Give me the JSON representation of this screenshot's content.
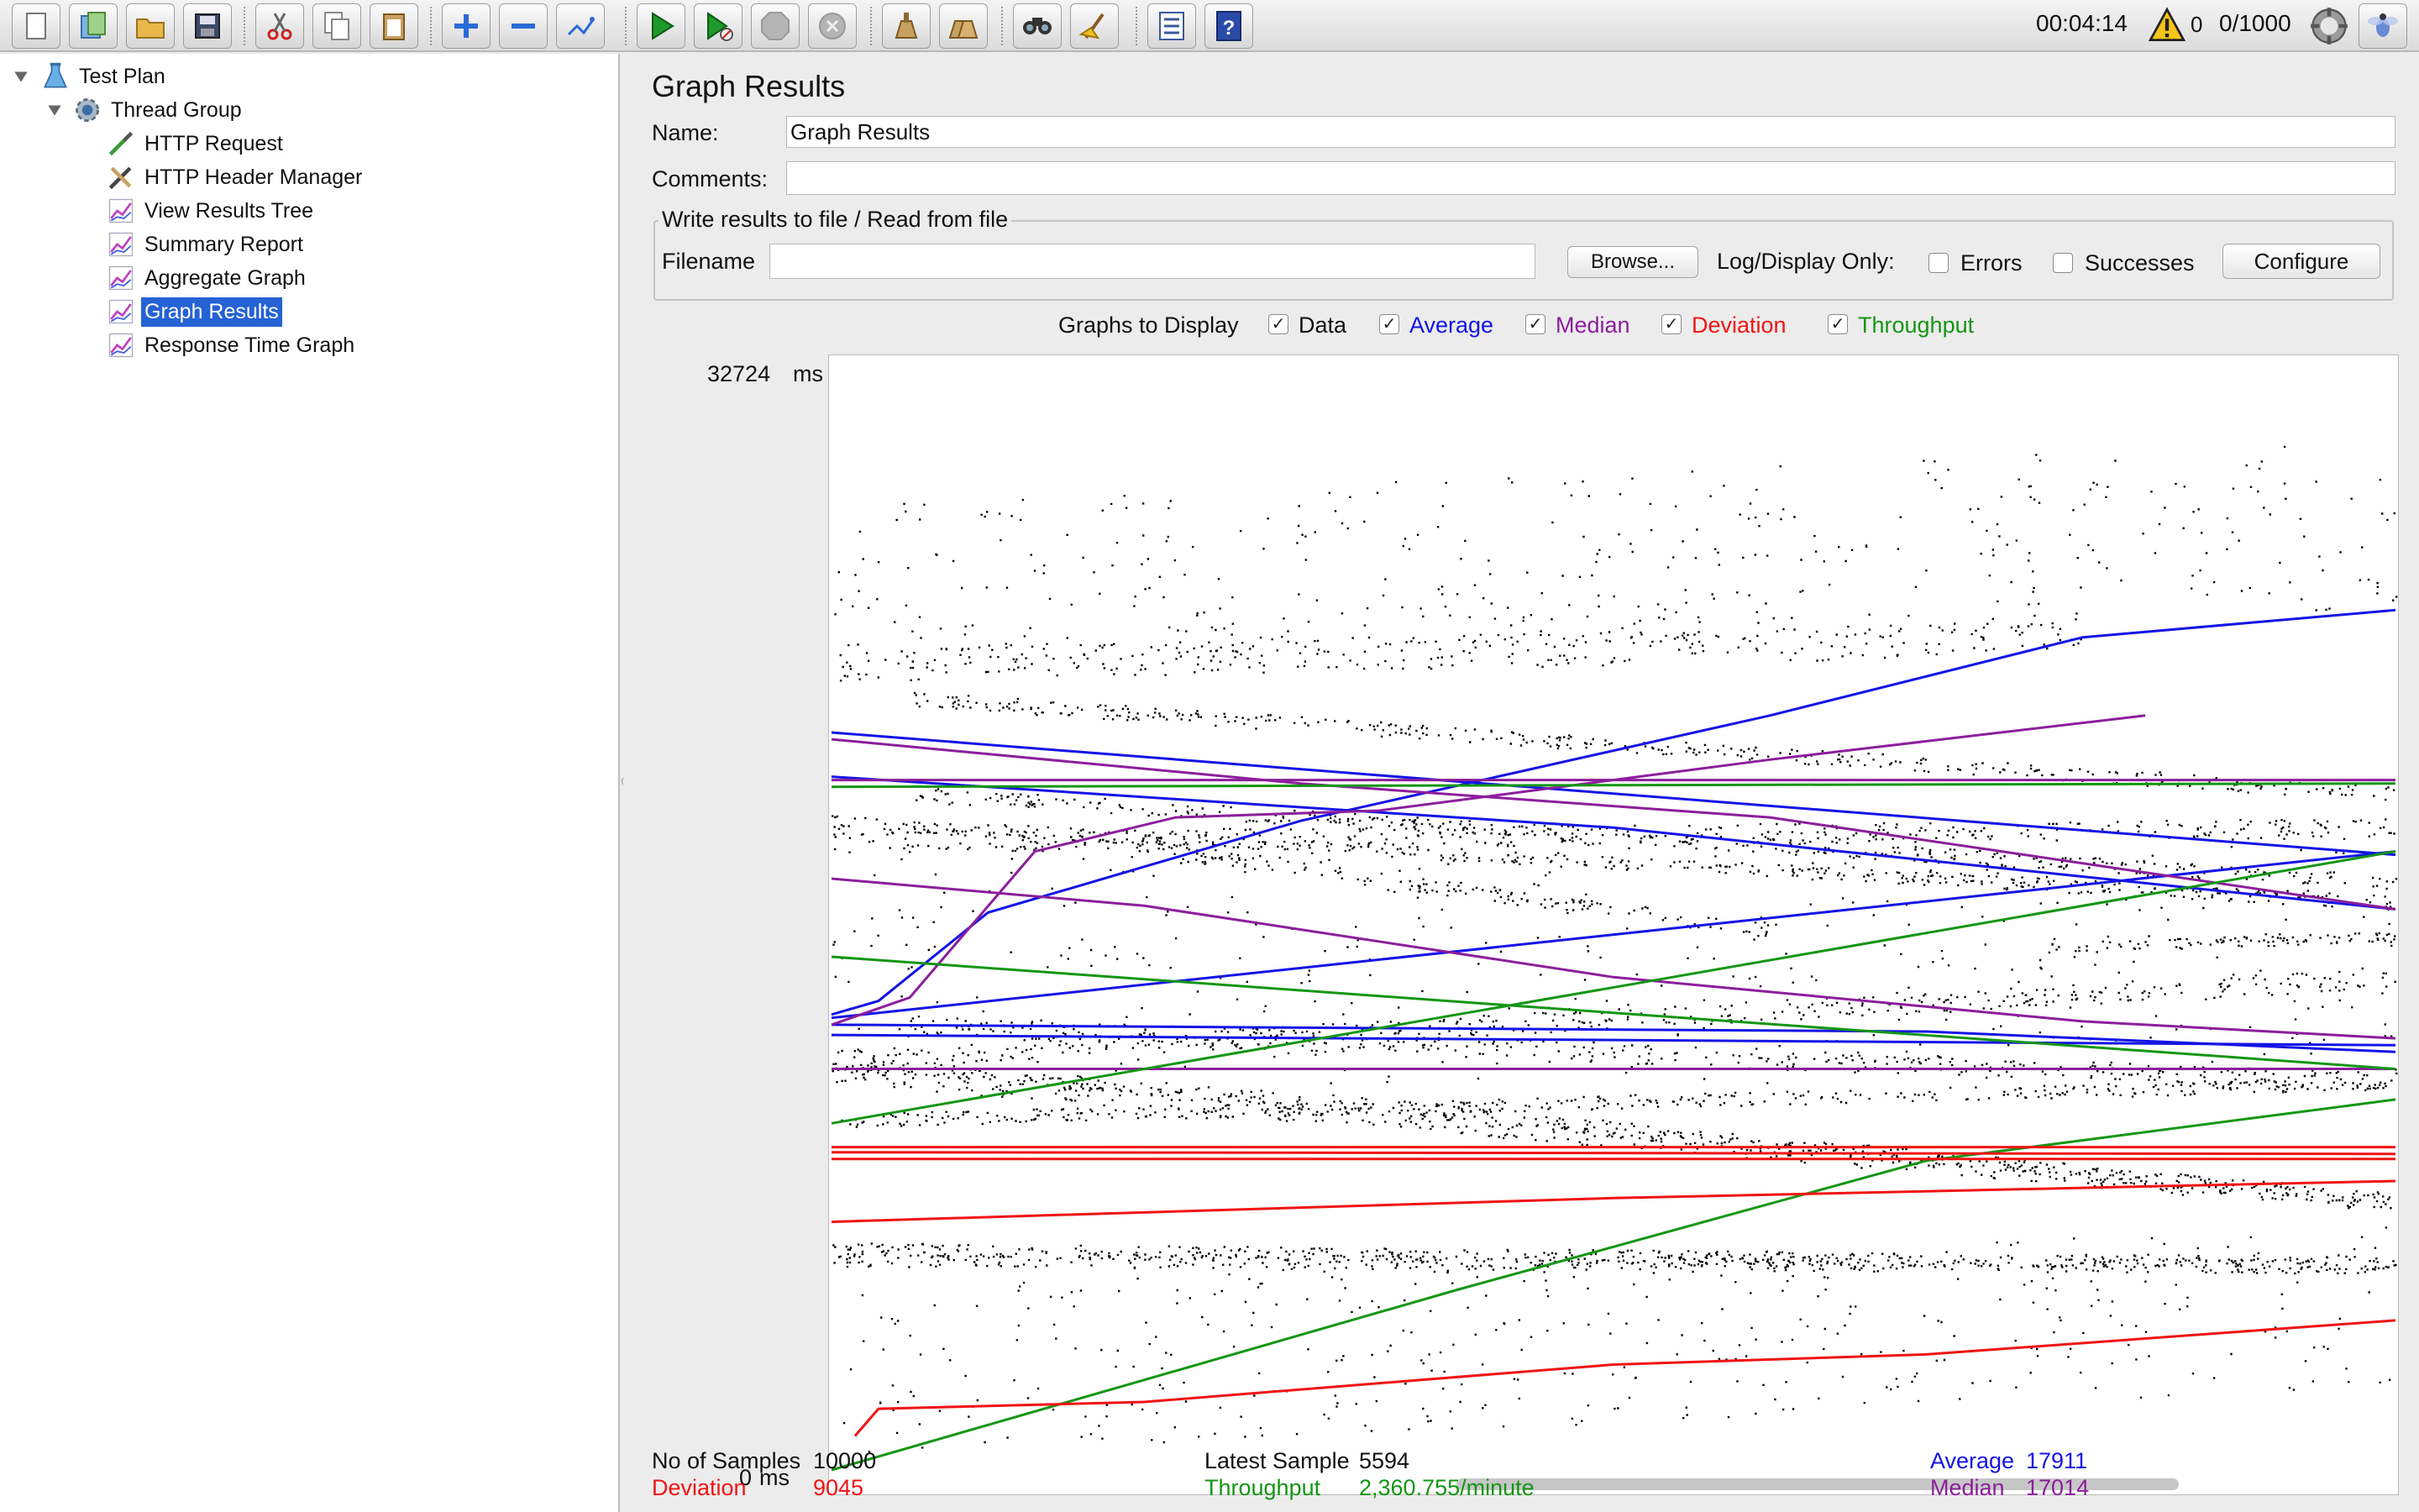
{
  "colors": {
    "data": "#000000",
    "average": "#1414e6",
    "median": "#8c1e9c",
    "deviation": "#f01414",
    "throughput": "#149614",
    "selection": "#2562d4"
  },
  "toolbar": {
    "buttons": [
      {
        "name": "new-icon"
      },
      {
        "name": "templates-icon"
      },
      {
        "name": "open-icon"
      },
      {
        "name": "save-icon"
      },
      {
        "name": "cut-icon"
      },
      {
        "name": "copy-icon"
      },
      {
        "name": "paste-icon"
      },
      {
        "name": "expand-icon"
      },
      {
        "name": "collapse-icon"
      },
      {
        "name": "toggle-icon"
      },
      {
        "name": "start-icon"
      },
      {
        "name": "start-no-pauses-icon"
      },
      {
        "name": "stop-icon"
      },
      {
        "name": "shutdown-icon"
      },
      {
        "name": "clear-icon"
      },
      {
        "name": "clear-all-icon"
      },
      {
        "name": "search-icon"
      },
      {
        "name": "reset-search-icon"
      },
      {
        "name": "function-helper-icon"
      },
      {
        "name": "help-icon"
      }
    ],
    "elapsed_time": "00:04:14",
    "warning_count": "0",
    "active_threads": "0/1000"
  },
  "tree": {
    "items": [
      {
        "label": "Test Plan",
        "icon": "flask-icon",
        "level": 0,
        "expander": "expanded"
      },
      {
        "label": "Thread Group",
        "icon": "gear-icon",
        "level": 1,
        "expander": "expanded"
      },
      {
        "label": "HTTP Request",
        "icon": "pipette-icon",
        "level": 2
      },
      {
        "label": "HTTP Header Manager",
        "icon": "tools-icon",
        "level": 2
      },
      {
        "label": "View Results Tree",
        "icon": "graph-listener-icon",
        "level": 2
      },
      {
        "label": "Summary Report",
        "icon": "graph-listener-icon",
        "level": 2
      },
      {
        "label": "Aggregate Graph",
        "icon": "graph-listener-icon",
        "level": 2
      },
      {
        "label": "Graph Results",
        "icon": "graph-listener-icon",
        "level": 2,
        "selected": true
      },
      {
        "label": "Response Time Graph",
        "icon": "graph-listener-icon",
        "level": 2
      }
    ]
  },
  "panel": {
    "title": "Graph Results",
    "name_label": "Name:",
    "name_value": "Graph Results",
    "comments_label": "Comments:",
    "comments_value": "",
    "file_group_label": "Write results to file / Read from file",
    "filename_label": "Filename",
    "filename_value": "",
    "browse_label": "Browse...",
    "log_display_label": "Log/Display Only:",
    "errors_label": "Errors",
    "successes_label": "Successes",
    "configure_label": "Configure"
  },
  "graphs_to_display": {
    "label": "Graphs to Display",
    "options": [
      {
        "label": "Data",
        "checked": true,
        "color": "#111111"
      },
      {
        "label": "Average",
        "checked": true,
        "color": "#1414e6"
      },
      {
        "label": "Median",
        "checked": true,
        "color": "#8c1e9c"
      },
      {
        "label": "Deviation",
        "checked": true,
        "color": "#f01414"
      },
      {
        "label": "Throughput",
        "checked": true,
        "color": "#149614"
      }
    ]
  },
  "chart_data": {
    "type": "scatter",
    "y_max_label": "32724",
    "y_min_label": "0",
    "y_unit": "ms",
    "ylim": [
      0,
      32724
    ],
    "grid": false,
    "series": [
      {
        "key": "average",
        "lines": [
          [
            [
              0,
              13500
            ],
            [
              3,
              13900
            ],
            [
              10,
              16500
            ],
            [
              30,
              19200
            ],
            [
              60,
              22300
            ],
            [
              80,
              24600
            ],
            [
              100,
              25400
            ]
          ],
          [
            [
              0,
              20500
            ],
            [
              50,
              19000
            ],
            [
              100,
              16600
            ]
          ],
          [
            [
              0,
              21800
            ],
            [
              100,
              18200
            ]
          ],
          [
            [
              0,
              12900
            ],
            [
              100,
              12600
            ]
          ],
          [
            [
              0,
              13400
            ],
            [
              100,
              18300
            ]
          ],
          [
            [
              0,
              13200
            ],
            [
              70,
              13000
            ],
            [
              100,
              12400
            ]
          ]
        ]
      },
      {
        "key": "median",
        "lines": [
          [
            [
              0,
              13200
            ],
            [
              5,
              14000
            ],
            [
              13,
              18300
            ],
            [
              22,
              19300
            ],
            [
              35,
              19500
            ],
            [
              60,
              21000
            ],
            [
              84,
              22300
            ]
          ],
          [
            [
              0,
              21600
            ],
            [
              30,
              20300
            ],
            [
              60,
              19300
            ],
            [
              100,
              16600
            ]
          ],
          [
            [
              0,
              17500
            ],
            [
              20,
              16700
            ],
            [
              50,
              14600
            ],
            [
              80,
              13300
            ],
            [
              100,
              12800
            ]
          ],
          [
            [
              0,
              11900
            ],
            [
              100,
              11900
            ]
          ],
          [
            [
              0,
              20400
            ],
            [
              100,
              20400
            ]
          ]
        ]
      },
      {
        "key": "throughput",
        "lines": [
          [
            [
              0,
              20200
            ],
            [
              100,
              20300
            ]
          ],
          [
            [
              0,
              10300
            ],
            [
              100,
              18300
            ]
          ],
          [
            [
              0,
              15200
            ],
            [
              100,
              11900
            ]
          ],
          [
            [
              0,
              100
            ],
            [
              40,
              5400
            ],
            [
              70,
              9200
            ],
            [
              100,
              11000
            ]
          ]
        ]
      },
      {
        "key": "deviation",
        "lines": [
          [
            [
              0,
              9600
            ],
            [
              100,
              9600
            ]
          ],
          [
            [
              0,
              9450
            ],
            [
              100,
              9400
            ]
          ],
          [
            [
              0,
              9250
            ],
            [
              100,
              9250
            ]
          ],
          [
            [
              0,
              7400
            ],
            [
              50,
              8100
            ],
            [
              100,
              8600
            ]
          ],
          [
            [
              1.5,
              1100
            ],
            [
              3,
              1900
            ],
            [
              20,
              2100
            ],
            [
              50,
              3200
            ],
            [
              70,
              3500
            ],
            [
              100,
              4500
            ]
          ]
        ]
      },
      {
        "key": "data",
        "bands": [
          {
            "from": [
              0,
              19200
            ],
            "to": [
              100,
              16800
            ],
            "spread": 200
          },
          {
            "from": [
              5,
              13200
            ],
            "to": [
              100,
              11500
            ],
            "spread": 300
          },
          {
            "from": [
              0,
              11800
            ],
            "to": [
              100,
              8000
            ],
            "spread": 300
          },
          {
            "from": [
              0,
              12200
            ],
            "to": [
              100,
              14600
            ],
            "spread": 300
          },
          {
            "from": [
              0,
              6300
            ],
            "to": [
              100,
              6100
            ],
            "spread": 200
          },
          {
            "from": [
              0,
              6600
            ],
            "to": [
              100,
              6200
            ],
            "spread": 200
          },
          {
            "from": [
              0,
              12100
            ],
            "to": [
              30,
              11000
            ],
            "spread": 200
          },
          {
            "from": [
              30,
              11000
            ],
            "to": [
              100,
              8000
            ],
            "spread": 250
          },
          {
            "from": [
              5,
              20000
            ],
            "to": [
              100,
              17400
            ],
            "spread": 220
          },
          {
            "from": [
              5,
              22800
            ],
            "to": [
              100,
              20000
            ],
            "spread": 220
          },
          {
            "from": [
              20,
              18400
            ],
            "to": [
              60,
              16000
            ],
            "spread": 220
          },
          {
            "from": [
              78,
              15500
            ],
            "to": [
              100,
              15800
            ],
            "spread": 150
          },
          {
            "from": [
              0,
              10400
            ],
            "to": [
              100,
              11500
            ],
            "spread": 200
          },
          {
            "from": [
              0,
              18600
            ],
            "to": [
              100,
              19000
            ],
            "spread": 300
          },
          {
            "from": [
              0,
              23800
            ],
            "to": [
              80,
              24600
            ],
            "spread": 500
          },
          {
            "from": [
              0,
              3000
            ],
            "to": [
              100,
              5000
            ],
            "spread": 2500
          },
          {
            "from": [
              0,
              26000
            ],
            "to": [
              100,
              28000
            ],
            "spread": 2500
          },
          {
            "from": [
              0,
              15000
            ],
            "to": [
              100,
              15000
            ],
            "spread": 3500
          }
        ]
      }
    ]
  },
  "stats": {
    "samples_label": "No of Samples",
    "samples_value": "10000",
    "latest_label": "Latest Sample",
    "latest_value": "5594",
    "average_label": "Average",
    "average_value": "17911",
    "deviation_label": "Deviation",
    "deviation_value": "9045",
    "throughput_label": "Throughput",
    "throughput_value": "2,360.755/minute",
    "median_label": "Median",
    "median_value": "17014"
  }
}
